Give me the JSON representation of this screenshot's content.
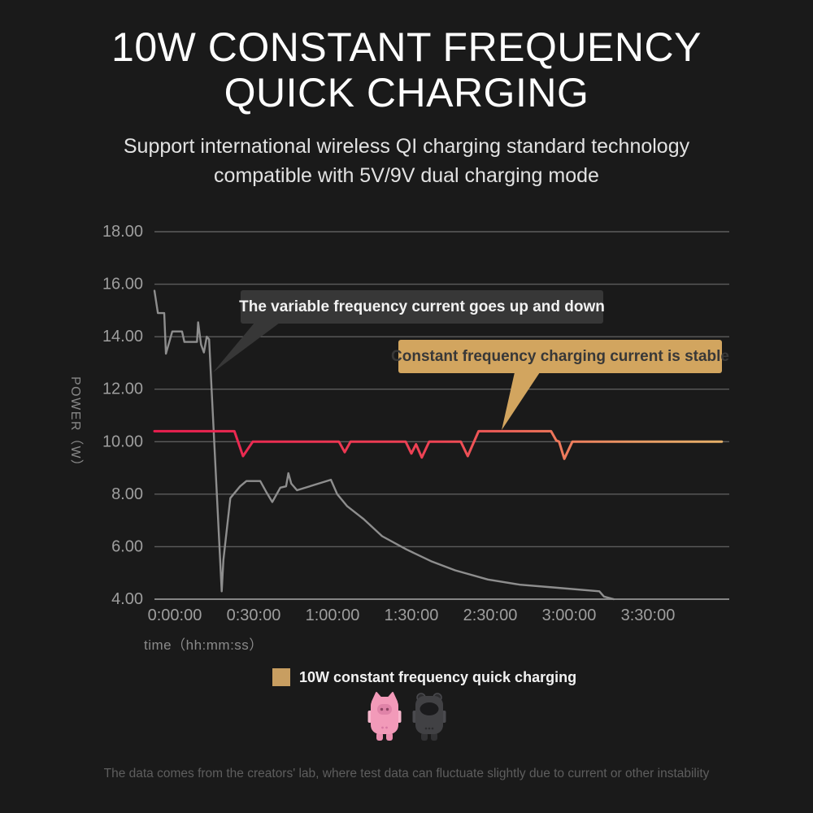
{
  "page": {
    "background": "#1a1a1a"
  },
  "header": {
    "title_line1": "10W CONSTANT FREQUENCY",
    "title_line2": "QUICK CHARGING",
    "subtitle_line1": "Support international wireless QI charging standard technology",
    "subtitle_line2": "compatible with 5V/9V dual charging mode"
  },
  "chart_data": {
    "type": "line",
    "title": "",
    "xlabel": "time（hh:mm:ss）",
    "ylabel": "POWER（W）",
    "x_tick_labels": [
      "0:00:00",
      "0:30:00",
      "1:00:00",
      "1:30:00",
      "2:30:00",
      "3:00:00",
      "3:30:00"
    ],
    "y_tick_labels": [
      "18.00",
      "16.00",
      "14.00",
      "12.00",
      "10.00",
      "8.00",
      "6.00",
      "4.00"
    ],
    "ylim": [
      4,
      18
    ],
    "grid": "horizontal-only",
    "legend_position": "bottom",
    "x_unit_note": "series x = percent across plot width; x tick labels are evenly spaced as shown (2:00:00 absent in source)",
    "series": [
      {
        "name": "variable frequency current",
        "color": "#8e8e8e",
        "width": 2.4,
        "points": [
          [
            0.0,
            15.75
          ],
          [
            0.6,
            14.9
          ],
          [
            1.7,
            14.9
          ],
          [
            2.0,
            13.35
          ],
          [
            3.1,
            14.2
          ],
          [
            4.8,
            14.2
          ],
          [
            5.2,
            13.8
          ],
          [
            7.4,
            13.8
          ],
          [
            7.6,
            14.55
          ],
          [
            8.1,
            13.7
          ],
          [
            8.6,
            13.4
          ],
          [
            9.1,
            14.0
          ],
          [
            9.5,
            13.9
          ],
          [
            11.7,
            4.3
          ],
          [
            12.0,
            5.5
          ],
          [
            13.2,
            7.85
          ],
          [
            14.9,
            8.3
          ],
          [
            16.0,
            8.5
          ],
          [
            18.4,
            8.5
          ],
          [
            19.4,
            8.1
          ],
          [
            20.5,
            7.7
          ],
          [
            21.9,
            8.25
          ],
          [
            22.9,
            8.3
          ],
          [
            23.3,
            8.8
          ],
          [
            23.8,
            8.4
          ],
          [
            24.8,
            8.15
          ],
          [
            30.7,
            8.55
          ],
          [
            31.8,
            8.0
          ],
          [
            33.5,
            7.55
          ],
          [
            36.4,
            7.05
          ],
          [
            39.6,
            6.4
          ],
          [
            43.8,
            5.9
          ],
          [
            48.1,
            5.45
          ],
          [
            52.3,
            5.1
          ],
          [
            58.0,
            4.75
          ],
          [
            63.6,
            4.55
          ],
          [
            69.3,
            4.45
          ],
          [
            77.4,
            4.3
          ],
          [
            78.2,
            4.1
          ],
          [
            79.9,
            4.0
          ]
        ]
      },
      {
        "name": "10W constant frequency quick charging",
        "gradient": [
          "#e91e4f",
          "#ed4454",
          "#ef7059",
          "#e89a64",
          "#e6b169"
        ],
        "width": 3,
        "points": [
          [
            0.0,
            10.4
          ],
          [
            13.9,
            10.4
          ],
          [
            15.4,
            9.45
          ],
          [
            17.1,
            10.0
          ],
          [
            32.1,
            10.0
          ],
          [
            33.1,
            9.6
          ],
          [
            34.1,
            10.0
          ],
          [
            43.7,
            10.0
          ],
          [
            44.7,
            9.55
          ],
          [
            45.5,
            9.9
          ],
          [
            46.5,
            9.4
          ],
          [
            47.8,
            10.0
          ],
          [
            53.3,
            10.0
          ],
          [
            54.5,
            9.45
          ],
          [
            56.4,
            10.4
          ],
          [
            69.0,
            10.4
          ],
          [
            69.9,
            10.05
          ],
          [
            70.4,
            10.0
          ],
          [
            71.3,
            9.35
          ],
          [
            72.7,
            10.0
          ],
          [
            98.7,
            10.0
          ]
        ]
      }
    ],
    "annotations": [
      {
        "text": "The variable frequency current goes up and down",
        "bg": "#373737",
        "text_color": "#f2f2f2"
      },
      {
        "text": "Constant frequency charging current is stable",
        "bg": "#d2a55f",
        "text_color": "#383838"
      }
    ]
  },
  "legend": {
    "swatch_color": "#c89e61",
    "label": "10W constant frequency quick charging"
  },
  "mascots": [
    {
      "name": "pink-pig-wireless-charger",
      "color": "#f29ab9"
    },
    {
      "name": "dark-robot-wireless-charger",
      "color": "#414144"
    }
  ],
  "footer": {
    "disclaimer": "The data comes from the creators' lab, where test data can fluctuate slightly due to current or other instability"
  }
}
